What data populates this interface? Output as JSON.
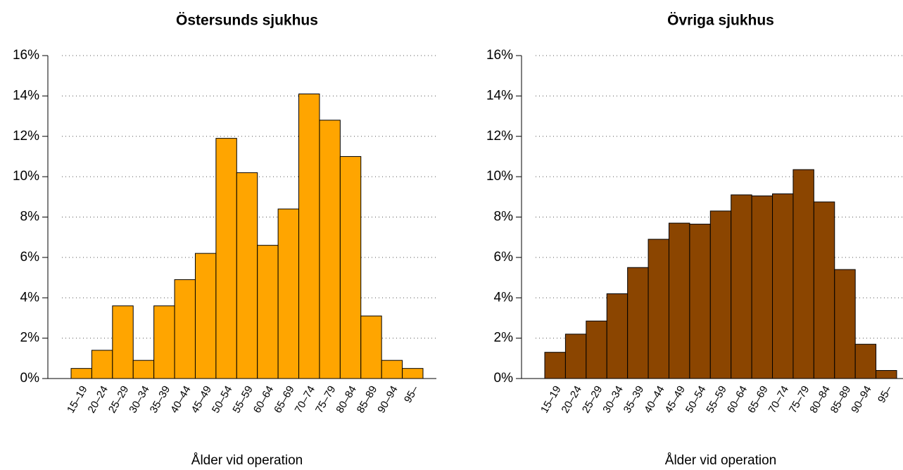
{
  "chart_data": [
    {
      "type": "bar",
      "title": "Östersunds sjukhus",
      "xlabel": "Ålder vid operation",
      "categories": [
        "15–19",
        "20–24",
        "25–29",
        "30–34",
        "35–39",
        "40–44",
        "45–49",
        "50–54",
        "55–59",
        "60–64",
        "65–69",
        "70–74",
        "75–79",
        "80–84",
        "85–89",
        "90–94",
        "95–"
      ],
      "values": [
        0.5,
        1.4,
        3.6,
        0.9,
        3.6,
        4.9,
        6.2,
        11.9,
        10.2,
        6.6,
        8.4,
        14.1,
        12.8,
        11.0,
        3.1,
        0.9,
        0.5
      ],
      "color": "#ffa500",
      "ylim": [
        0,
        16
      ],
      "yticks": [
        {
          "value": 0,
          "label": "0%"
        },
        {
          "value": 2,
          "label": "2%"
        },
        {
          "value": 4,
          "label": "4%"
        },
        {
          "value": 6,
          "label": "6%"
        },
        {
          "value": 8,
          "label": "8%"
        },
        {
          "value": 10,
          "label": "10%"
        },
        {
          "value": 12,
          "label": "12%"
        },
        {
          "value": 14,
          "label": "14%"
        },
        {
          "value": 16,
          "label": "16%"
        }
      ],
      "grid": true
    },
    {
      "type": "bar",
      "title": "Övriga sjukhus",
      "xlabel": "Ålder vid operation",
      "categories": [
        "15–19",
        "20–24",
        "25–29",
        "30–34",
        "35–39",
        "40–44",
        "45–49",
        "50–54",
        "55–59",
        "60–64",
        "65–69",
        "70–74",
        "75–79",
        "80–84",
        "85–89",
        "90–94",
        "95–"
      ],
      "values": [
        1.3,
        2.2,
        2.85,
        4.2,
        5.5,
        6.9,
        7.7,
        7.65,
        8.3,
        9.1,
        9.05,
        9.15,
        10.35,
        8.75,
        5.4,
        1.7,
        0.4
      ],
      "color": "#8b4500",
      "ylim": [
        0,
        16
      ],
      "yticks": [
        {
          "value": 0,
          "label": "0%"
        },
        {
          "value": 2,
          "label": "2%"
        },
        {
          "value": 4,
          "label": "4%"
        },
        {
          "value": 6,
          "label": "6%"
        },
        {
          "value": 8,
          "label": "8%"
        },
        {
          "value": 10,
          "label": "10%"
        },
        {
          "value": 12,
          "label": "12%"
        },
        {
          "value": 14,
          "label": "14%"
        },
        {
          "value": 16,
          "label": "16%"
        }
      ],
      "grid": true
    }
  ]
}
